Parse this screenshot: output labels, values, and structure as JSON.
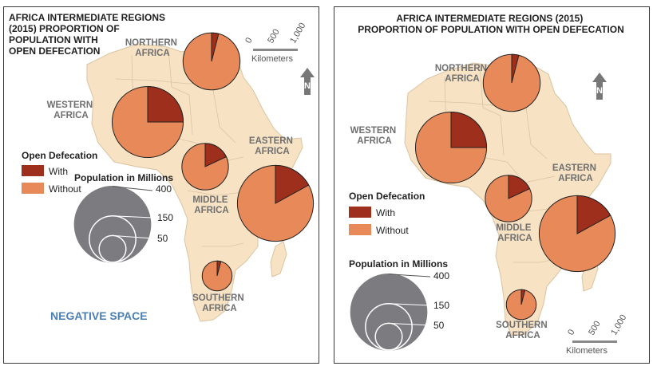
{
  "left_map": {
    "title_lines": [
      "AFRICA INTERMEDIATE REGIONS",
      "(2015) PROPORTION OF",
      "POPULATION WITH",
      "OPEN DEFECATION"
    ],
    "negative_space_label": "NEGATIVE SPACE"
  },
  "right_map": {
    "title_lines": [
      "AFRICA INTERMEDIATE REGIONS (2015)",
      "PROPORTION OF POPULATION WITH OPEN DEFECATION"
    ]
  },
  "region_labels": {
    "northern": [
      "NORTHERN",
      "AFRICA"
    ],
    "western": [
      "WESTERN",
      "AFRICA"
    ],
    "eastern": [
      "EASTERN",
      "AFRICA"
    ],
    "middle": [
      "MIDDLE",
      "AFRICA"
    ],
    "southern": [
      "SOUTHERN",
      "AFRICA"
    ]
  },
  "legend": {
    "open_defecation_heading": "Open Defecation",
    "with_label": "With",
    "without_label": "Without",
    "population_heading": "Population in Millions",
    "size_labels": [
      "400",
      "150",
      "50"
    ],
    "size_values": [
      400,
      150,
      50
    ]
  },
  "scale_bar": {
    "ticks": [
      "0",
      "500",
      "1,000"
    ],
    "unit": "Kilometers"
  },
  "north_arrow_label": "N",
  "colors": {
    "with": "#9e2f1c",
    "without": "#e8895a",
    "land": "#f7e3c4",
    "land_border": "#d9c3a2",
    "bubble_legend": "#7c7c80",
    "ocean": "#ffffff"
  },
  "chart_data": {
    "type": "pie",
    "series_names": [
      "With open defecation",
      "Without open defecation"
    ],
    "regions": [
      {
        "region": "Northern Africa",
        "with_share": 0.04,
        "population_millions": 225
      },
      {
        "region": "Western Africa",
        "with_share": 0.25,
        "population_millions": 350
      },
      {
        "region": "Middle Africa",
        "with_share": 0.18,
        "population_millions": 150
      },
      {
        "region": "Eastern Africa",
        "with_share": 0.17,
        "population_millions": 400
      },
      {
        "region": "Southern Africa",
        "with_share": 0.04,
        "population_millions": 62
      }
    ]
  }
}
